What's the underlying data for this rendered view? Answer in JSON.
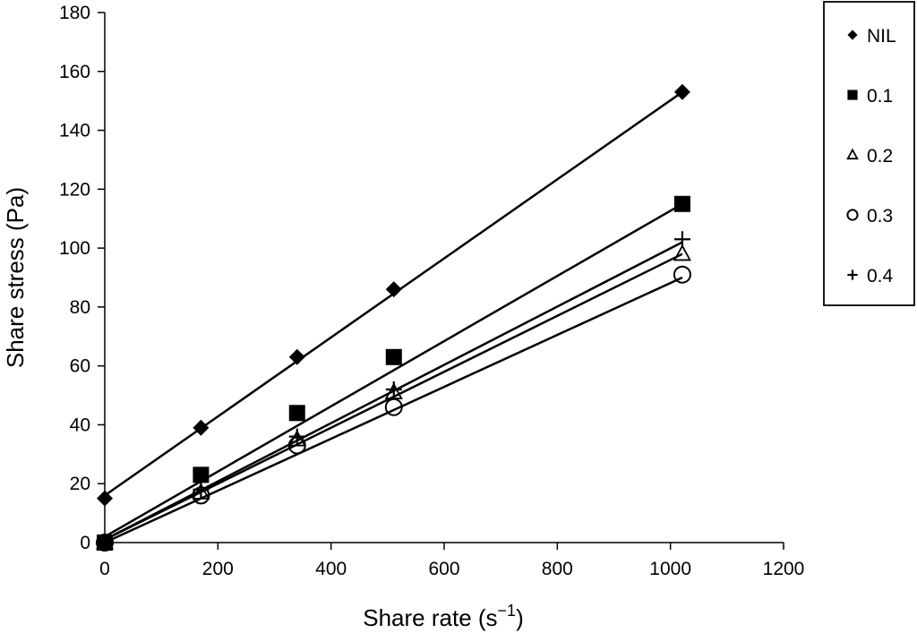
{
  "chart_data": {
    "type": "scatter",
    "xlabel": "Share rate (s",
    "xlabel_superscript": "−1",
    "xlabel_suffix": ")",
    "ylabel": "Share stress (Pa)",
    "xlim": [
      0,
      1200
    ],
    "ylim": [
      0,
      180
    ],
    "xticks": [
      0,
      200,
      400,
      600,
      800,
      1000,
      1200
    ],
    "yticks": [
      0,
      20,
      40,
      60,
      80,
      100,
      120,
      140,
      160,
      180
    ],
    "grid": false,
    "legend_position": "top-right, outside plot",
    "trendlines": "linear fit per series",
    "series": [
      {
        "name": "NIL",
        "marker": "diamond",
        "x": [
          0,
          170,
          340,
          511,
          1021
        ],
        "y": [
          15,
          39,
          63,
          86,
          153
        ],
        "fit": [
          [
            0,
            16
          ],
          [
            1021,
            153
          ]
        ]
      },
      {
        "name": "0.1",
        "marker": "square",
        "x": [
          0,
          170,
          340,
          511,
          1021
        ],
        "y": [
          0,
          23,
          44,
          63,
          115
        ],
        "fit": [
          [
            0,
            2
          ],
          [
            1021,
            115
          ]
        ]
      },
      {
        "name": "0.2",
        "marker": "triangle",
        "x": [
          0,
          170,
          340,
          511,
          1021
        ],
        "y": [
          0,
          17,
          35,
          51,
          98
        ],
        "fit": [
          [
            0,
            1
          ],
          [
            1021,
            98
          ]
        ]
      },
      {
        "name": "0.3",
        "marker": "circle",
        "x": [
          0,
          170,
          340,
          511,
          1021
        ],
        "y": [
          0,
          16,
          33,
          46,
          91
        ],
        "fit": [
          [
            0,
            0
          ],
          [
            1021,
            90
          ]
        ]
      },
      {
        "name": "0.4",
        "marker": "plus",
        "x": [
          0,
          170,
          340,
          511,
          1021
        ],
        "y": [
          0,
          18,
          36,
          52,
          103
        ],
        "fit": [
          [
            0,
            1
          ],
          [
            1021,
            102
          ]
        ]
      }
    ],
    "colors": {
      "ink": "#000000",
      "background": "#ffffff"
    }
  }
}
